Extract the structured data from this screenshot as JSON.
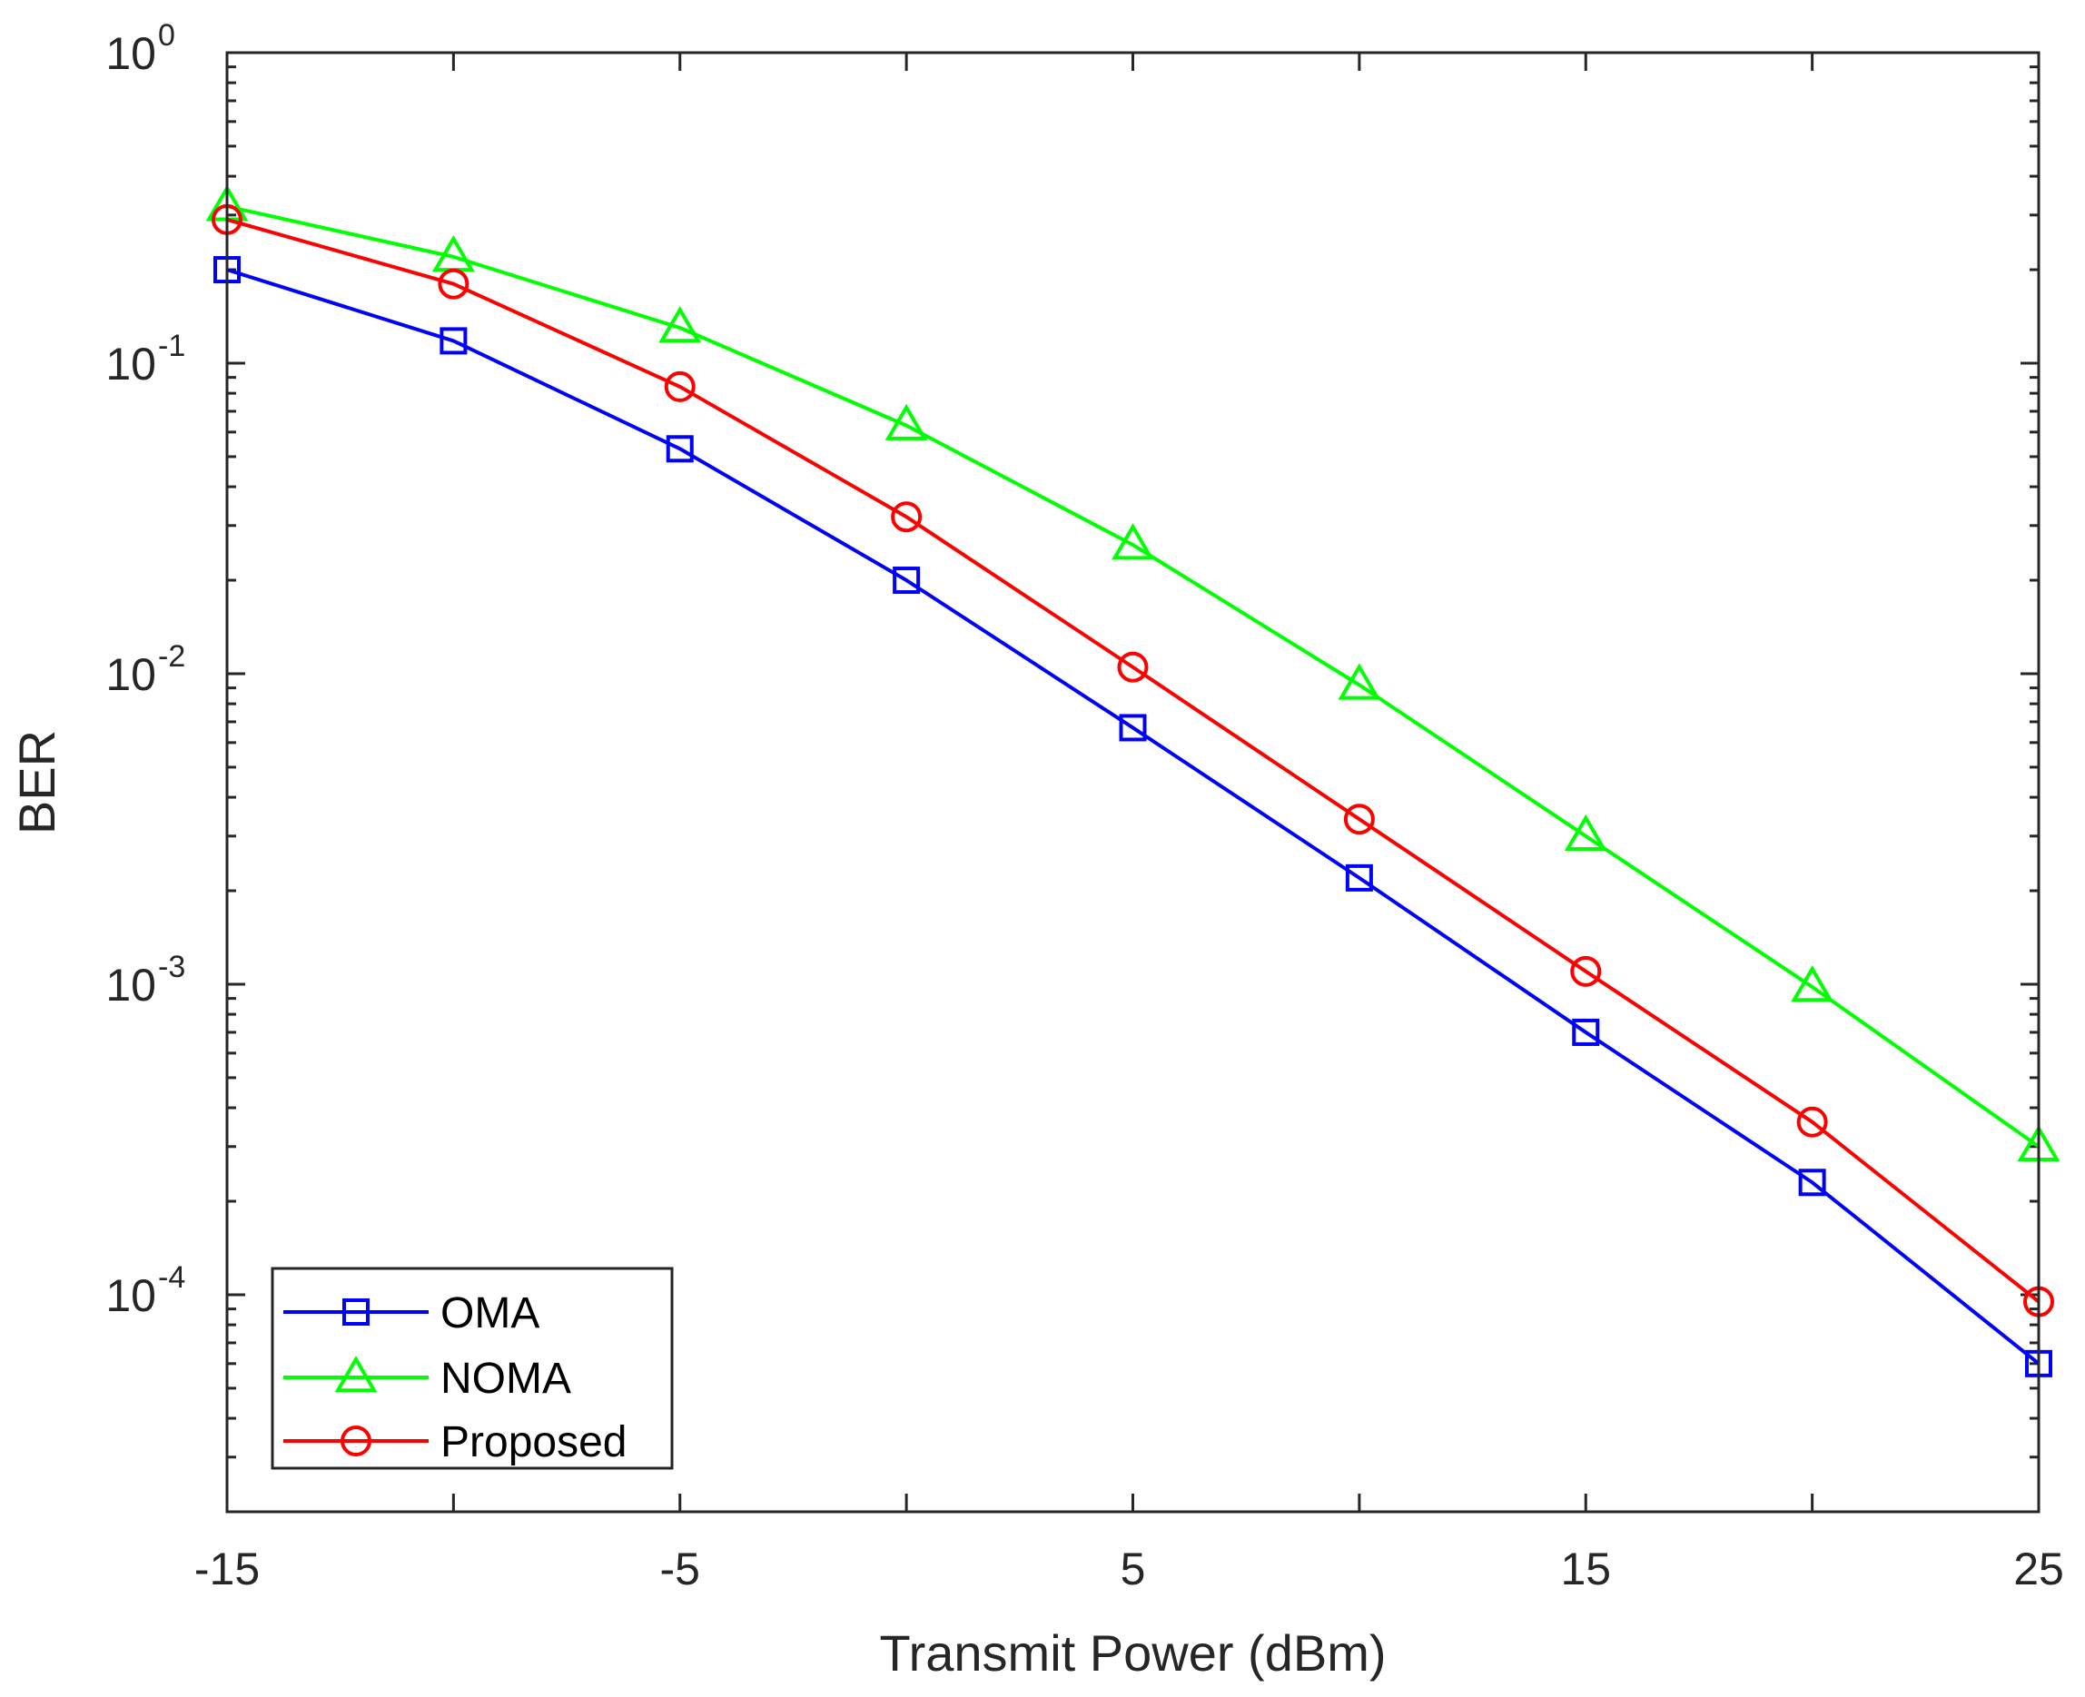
{
  "chart_data": {
    "type": "line",
    "title": "",
    "xlabel": "Transmit Power (dBm)",
    "ylabel": "BER",
    "xlim": [
      -15,
      25
    ],
    "ylim": [
      2e-05,
      1
    ],
    "yscale": "log",
    "xticks": [
      -15,
      -5,
      5,
      15,
      25
    ],
    "xtick_labels": [
      "-15",
      "-5",
      "5",
      "15",
      "25"
    ],
    "yticks": [
      {
        "value": 1,
        "base": "10",
        "exp": "0"
      },
      {
        "value": 0.1,
        "base": "10",
        "exp": "-1"
      },
      {
        "value": 0.01,
        "base": "10",
        "exp": "-2"
      },
      {
        "value": 0.001,
        "base": "10",
        "exp": "-3"
      },
      {
        "value": 0.0001,
        "base": "10",
        "exp": "-4"
      }
    ],
    "grid": false,
    "legend_position": "bottom-left",
    "x": [
      -15,
      -10,
      -5,
      0,
      5,
      10,
      15,
      20,
      25
    ],
    "series": [
      {
        "name": "OMA",
        "color": "#0000ff",
        "marker": "square",
        "values": [
          0.2,
          0.118,
          0.053,
          0.02,
          0.0067,
          0.0022,
          0.0007,
          0.00023,
          6e-05
        ]
      },
      {
        "name": "NOMA",
        "color": "#00ff00",
        "marker": "triangle",
        "values": [
          0.32,
          0.22,
          0.13,
          0.063,
          0.026,
          0.0092,
          0.003,
          0.00098,
          0.0003
        ]
      },
      {
        "name": "Proposed",
        "color": "#ff0000",
        "marker": "circle",
        "values": [
          0.29,
          0.18,
          0.084,
          0.032,
          0.0105,
          0.0034,
          0.0011,
          0.00036,
          9.5e-05
        ]
      }
    ]
  }
}
